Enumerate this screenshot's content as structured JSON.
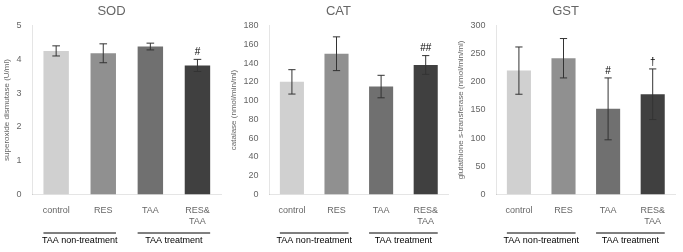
{
  "chart_data": [
    {
      "type": "bar",
      "title": "SOD",
      "ylabel": "superoxide dismutase (U/ml)",
      "categories": [
        "control",
        "RES",
        "TAA",
        "RES&\nTAA"
      ],
      "values": [
        4.25,
        4.18,
        4.38,
        3.82
      ],
      "errors": [
        0.15,
        0.28,
        0.1,
        0.18
      ],
      "colors": [
        "#d0d0d0",
        "#909090",
        "#707070",
        "#404040"
      ],
      "ylim": [
        0,
        5
      ],
      "yticks": [
        0,
        1,
        2,
        3,
        4,
        5
      ],
      "grid": false,
      "annotations": [
        {
          "x": "RES&\nTAA",
          "text": "#"
        }
      ],
      "groups": [
        {
          "label": "TAA non-treatment",
          "categories": [
            "control",
            "RES"
          ]
        },
        {
          "label": "TAA treatment",
          "categories": [
            "TAA",
            "RES&\nTAA"
          ]
        }
      ]
    },
    {
      "type": "bar",
      "title": "CAT",
      "ylabel": "catalase (nmol/min/ml)",
      "categories": [
        "control",
        "RES",
        "TAA",
        "RES&\nTAA"
      ],
      "values": [
        120,
        150,
        115,
        138
      ],
      "errors": [
        13,
        18,
        12,
        10
      ],
      "colors": [
        "#d0d0d0",
        "#909090",
        "#707070",
        "#404040"
      ],
      "ylim": [
        0,
        180
      ],
      "yticks": [
        0,
        20,
        40,
        60,
        80,
        100,
        120,
        140,
        160,
        180
      ],
      "grid": false,
      "annotations": [
        {
          "x": "RES&\nTAA",
          "text": "##"
        }
      ],
      "groups": [
        {
          "label": "TAA non-treatment",
          "categories": [
            "control",
            "RES"
          ]
        },
        {
          "label": "TAA treatment",
          "categories": [
            "TAA",
            "RES&\nTAA"
          ]
        }
      ]
    },
    {
      "type": "bar",
      "title": "GST",
      "ylabel": "glutathione s-transferase (nmol/min/ml)",
      "categories": [
        "control",
        "RES",
        "TAA",
        "RES&\nTAA"
      ],
      "values": [
        220,
        242,
        152,
        178
      ],
      "errors": [
        42,
        35,
        55,
        45
      ],
      "colors": [
        "#d0d0d0",
        "#909090",
        "#707070",
        "#404040"
      ],
      "ylim": [
        0,
        300
      ],
      "yticks": [
        0,
        50,
        100,
        150,
        200,
        250,
        300
      ],
      "grid": false,
      "annotations": [
        {
          "x": "TAA",
          "text": "#"
        },
        {
          "x": "RES&\nTAA",
          "text": "†"
        }
      ],
      "groups": [
        {
          "label": "TAA non-treatment",
          "categories": [
            "control",
            "RES"
          ]
        },
        {
          "label": "TAA treatment",
          "categories": [
            "TAA",
            "RES&\nTAA"
          ]
        }
      ]
    }
  ]
}
